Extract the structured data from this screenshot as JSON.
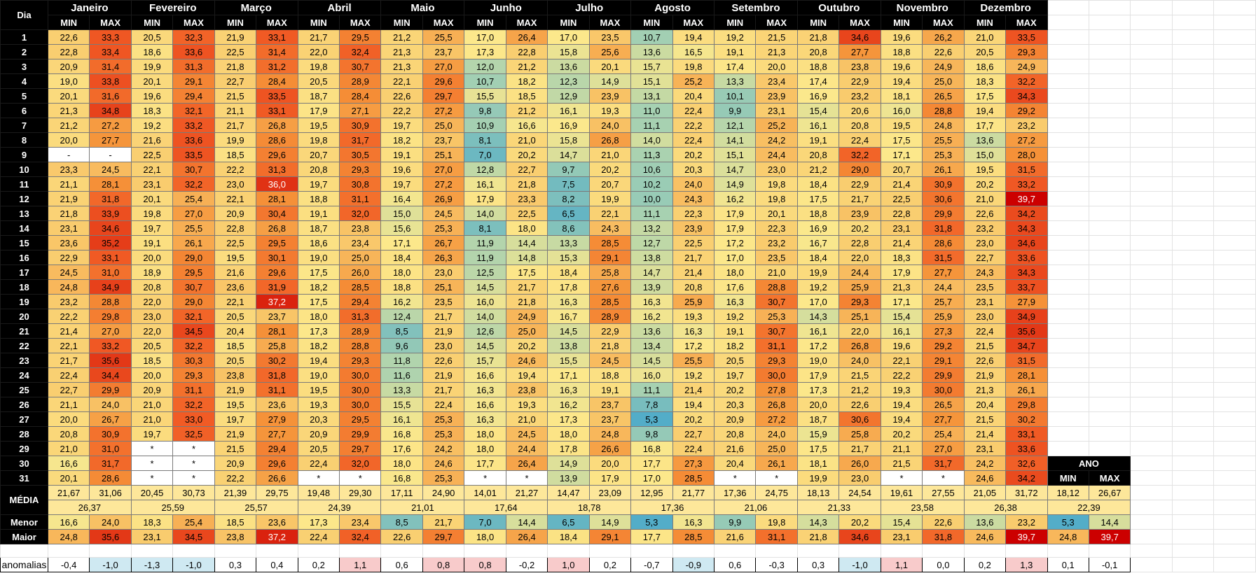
{
  "header": {
    "dia_label": "Dia",
    "min_label": "MIN",
    "max_label": "MAX",
    "months": [
      "Janeiro",
      "Fevereiro",
      "Março",
      "Abril",
      "Maio",
      "Junho",
      "Julho",
      "Agosto",
      "Setembro",
      "Outubro",
      "Novembro",
      "Dezembro"
    ]
  },
  "days": [
    "1",
    "2",
    "3",
    "4",
    "5",
    "6",
    "7",
    "8",
    "9",
    "10",
    "11",
    "12",
    "13",
    "14",
    "15",
    "16",
    "17",
    "18",
    "19",
    "20",
    "21",
    "22",
    "23",
    "24",
    "25",
    "26",
    "27",
    "28",
    "29",
    "30",
    "31"
  ],
  "rows": [
    [
      "22,6",
      "33,3",
      "20,5",
      "32,3",
      "21,9",
      "33,1",
      "21,7",
      "29,5",
      "21,2",
      "25,5",
      "17,0",
      "26,4",
      "17,0",
      "23,5",
      "10,7",
      "19,4",
      "19,2",
      "21,5",
      "21,8",
      "34,6",
      "19,6",
      "26,2",
      "21,0",
      "33,5"
    ],
    [
      "22,8",
      "33,4",
      "18,6",
      "33,6",
      "22,5",
      "31,4",
      "22,0",
      "32,4",
      "21,3",
      "23,7",
      "17,3",
      "22,8",
      "15,8",
      "25,6",
      "13,6",
      "16,5",
      "19,1",
      "21,3",
      "20,8",
      "27,7",
      "18,8",
      "22,6",
      "20,5",
      "29,3"
    ],
    [
      "20,9",
      "31,4",
      "19,9",
      "31,3",
      "21,8",
      "31,2",
      "19,8",
      "30,7",
      "21,3",
      "27,0",
      "12,0",
      "21,2",
      "13,6",
      "20,1",
      "15,7",
      "19,8",
      "17,4",
      "20,0",
      "18,8",
      "23,8",
      "19,6",
      "24,9",
      "18,6",
      "24,9"
    ],
    [
      "19,0",
      "33,8",
      "20,1",
      "29,1",
      "22,7",
      "28,4",
      "20,5",
      "28,9",
      "22,1",
      "29,6",
      "10,7",
      "18,2",
      "12,3",
      "14,9",
      "15,1",
      "25,2",
      "13,3",
      "23,4",
      "17,4",
      "22,9",
      "19,4",
      "25,0",
      "18,3",
      "32,2"
    ],
    [
      "20,1",
      "31,6",
      "19,6",
      "29,4",
      "21,5",
      "33,5",
      "18,7",
      "28,4",
      "22,6",
      "29,7",
      "15,5",
      "18,5",
      "12,9",
      "23,9",
      "13,1",
      "20,4",
      "10,1",
      "23,9",
      "16,9",
      "23,2",
      "18,1",
      "26,5",
      "17,5",
      "34,3"
    ],
    [
      "21,3",
      "34,8",
      "18,3",
      "32,1",
      "21,1",
      "33,1",
      "17,9",
      "27,1",
      "22,2",
      "27,2",
      "9,8",
      "21,2",
      "16,1",
      "19,3",
      "11,0",
      "22,4",
      "9,9",
      "23,1",
      "15,4",
      "20,6",
      "16,0",
      "28,8",
      "19,4",
      "29,2"
    ],
    [
      "21,2",
      "27,2",
      "19,2",
      "33,2",
      "21,7",
      "26,8",
      "19,5",
      "30,9",
      "19,7",
      "25,0",
      "10,9",
      "16,6",
      "16,9",
      "24,0",
      "11,1",
      "22,2",
      "12,1",
      "25,2",
      "16,1",
      "20,8",
      "19,5",
      "24,8",
      "17,7",
      "23,2"
    ],
    [
      "20,0",
      "27,7",
      "21,6",
      "33,6",
      "19,9",
      "28,6",
      "19,8",
      "31,7",
      "18,2",
      "23,7",
      "8,1",
      "21,0",
      "15,8",
      "26,8",
      "14,0",
      "22,4",
      "14,1",
      "24,2",
      "19,1",
      "22,4",
      "17,5",
      "25,5",
      "13,6",
      "27,2"
    ],
    [
      "-",
      "-",
      "22,5",
      "33,5",
      "18,5",
      "29,6",
      "20,7",
      "30,5",
      "19,1",
      "25,1",
      "7,0",
      "20,2",
      "14,7",
      "21,0",
      "11,3",
      "20,2",
      "15,1",
      "24,4",
      "20,8",
      "32,2",
      "17,1",
      "25,3",
      "15,0",
      "28,0"
    ],
    [
      "23,3",
      "24,5",
      "22,1",
      "30,7",
      "22,2",
      "31,3",
      "20,8",
      "29,3",
      "19,6",
      "27,0",
      "12,8",
      "22,7",
      "9,7",
      "20,2",
      "10,6",
      "20,3",
      "14,7",
      "23,0",
      "21,2",
      "29,0",
      "20,7",
      "26,1",
      "19,5",
      "31,5"
    ],
    [
      "21,1",
      "28,1",
      "23,1",
      "32,2",
      "23,0",
      "36,0",
      "19,7",
      "30,8",
      "19,7",
      "27,2",
      "16,1",
      "21,8",
      "7,5",
      "20,7",
      "10,2",
      "24,0",
      "14,9",
      "19,8",
      "18,4",
      "22,9",
      "21,4",
      "30,9",
      "20,2",
      "33,2"
    ],
    [
      "21,9",
      "31,8",
      "20,1",
      "25,4",
      "22,1",
      "28,1",
      "18,8",
      "31,1",
      "16,4",
      "26,9",
      "17,9",
      "23,3",
      "8,2",
      "19,9",
      "10,0",
      "24,3",
      "16,2",
      "19,8",
      "17,5",
      "21,7",
      "22,5",
      "30,6",
      "21,0",
      "39,7"
    ],
    [
      "21,8",
      "33,9",
      "19,8",
      "27,0",
      "20,9",
      "30,4",
      "19,1",
      "32,0",
      "15,0",
      "24,5",
      "14,0",
      "22,5",
      "6,5",
      "22,1",
      "11,1",
      "22,3",
      "17,9",
      "20,1",
      "18,8",
      "23,9",
      "22,8",
      "29,9",
      "22,6",
      "34,2"
    ],
    [
      "23,1",
      "34,6",
      "19,7",
      "25,5",
      "22,8",
      "26,8",
      "18,7",
      "23,8",
      "15,6",
      "25,3",
      "8,1",
      "18,0",
      "8,6",
      "24,3",
      "13,2",
      "23,9",
      "17,9",
      "22,3",
      "16,9",
      "20,2",
      "23,1",
      "31,8",
      "23,2",
      "34,3"
    ],
    [
      "23,6",
      "35,2",
      "19,1",
      "26,1",
      "22,5",
      "29,5",
      "18,6",
      "23,4",
      "17,1",
      "26,7",
      "11,9",
      "14,4",
      "13,3",
      "28,5",
      "12,7",
      "22,5",
      "17,2",
      "23,2",
      "16,7",
      "22,8",
      "21,4",
      "28,6",
      "23,0",
      "34,6"
    ],
    [
      "22,9",
      "33,1",
      "20,0",
      "29,0",
      "19,5",
      "30,1",
      "19,0",
      "25,0",
      "18,4",
      "26,3",
      "11,9",
      "14,8",
      "15,3",
      "29,1",
      "13,8",
      "21,7",
      "17,0",
      "23,5",
      "18,4",
      "22,0",
      "18,3",
      "31,5",
      "22,7",
      "33,6"
    ],
    [
      "24,5",
      "31,0",
      "18,9",
      "29,5",
      "21,6",
      "29,6",
      "17,5",
      "26,0",
      "18,0",
      "23,0",
      "12,5",
      "17,5",
      "18,4",
      "25,8",
      "14,7",
      "21,4",
      "18,0",
      "21,0",
      "19,9",
      "24,4",
      "17,9",
      "27,7",
      "24,3",
      "34,3"
    ],
    [
      "24,8",
      "34,9",
      "20,8",
      "30,7",
      "23,6",
      "31,9",
      "18,2",
      "28,5",
      "18,8",
      "25,1",
      "14,5",
      "21,7",
      "17,8",
      "27,6",
      "13,9",
      "20,8",
      "17,6",
      "28,8",
      "19,2",
      "25,9",
      "21,3",
      "24,4",
      "23,5",
      "33,7"
    ],
    [
      "23,2",
      "28,8",
      "22,0",
      "29,0",
      "22,1",
      "37,2",
      "17,5",
      "29,4",
      "16,2",
      "23,5",
      "16,0",
      "21,8",
      "16,3",
      "28,5",
      "16,3",
      "25,9",
      "16,3",
      "30,7",
      "17,0",
      "29,3",
      "17,1",
      "25,7",
      "23,1",
      "27,9"
    ],
    [
      "22,2",
      "29,8",
      "23,0",
      "32,1",
      "20,5",
      "23,7",
      "18,0",
      "31,3",
      "12,4",
      "21,7",
      "14,0",
      "24,9",
      "16,7",
      "28,9",
      "16,2",
      "19,3",
      "19,2",
      "25,3",
      "14,3",
      "25,1",
      "15,4",
      "25,9",
      "23,0",
      "34,9"
    ],
    [
      "21,4",
      "27,0",
      "22,0",
      "34,5",
      "20,4",
      "28,1",
      "17,3",
      "28,9",
      "8,5",
      "21,9",
      "12,6",
      "25,0",
      "14,5",
      "22,9",
      "13,6",
      "16,3",
      "19,1",
      "30,7",
      "16,1",
      "22,0",
      "16,1",
      "27,3",
      "22,4",
      "35,6"
    ],
    [
      "22,1",
      "33,2",
      "20,5",
      "32,2",
      "18,5",
      "25,8",
      "18,2",
      "28,8",
      "9,6",
      "23,0",
      "14,5",
      "20,2",
      "13,8",
      "21,8",
      "13,4",
      "17,2",
      "18,2",
      "31,1",
      "17,2",
      "26,8",
      "19,6",
      "29,2",
      "21,5",
      "34,7"
    ],
    [
      "21,7",
      "35,6",
      "18,5",
      "30,3",
      "20,5",
      "30,2",
      "19,4",
      "29,3",
      "11,8",
      "22,6",
      "15,7",
      "24,6",
      "15,5",
      "24,5",
      "14,5",
      "25,5",
      "20,5",
      "29,3",
      "19,0",
      "24,0",
      "22,1",
      "29,1",
      "22,6",
      "31,5"
    ],
    [
      "22,4",
      "34,4",
      "20,0",
      "29,3",
      "23,8",
      "31,8",
      "19,0",
      "30,0",
      "11,6",
      "21,9",
      "16,6",
      "19,4",
      "17,1",
      "18,8",
      "16,0",
      "19,2",
      "19,7",
      "30,0",
      "17,9",
      "21,5",
      "22,2",
      "29,9",
      "21,9",
      "28,1"
    ],
    [
      "22,7",
      "29,9",
      "20,9",
      "31,1",
      "21,9",
      "31,1",
      "19,5",
      "30,0",
      "13,3",
      "21,7",
      "16,3",
      "23,8",
      "16,3",
      "19,1",
      "11,1",
      "21,4",
      "20,2",
      "27,8",
      "17,3",
      "21,2",
      "19,3",
      "30,0",
      "21,3",
      "26,1"
    ],
    [
      "21,1",
      "24,0",
      "21,0",
      "32,2",
      "19,5",
      "23,6",
      "19,3",
      "30,0",
      "15,5",
      "22,4",
      "16,6",
      "19,3",
      "16,2",
      "23,7",
      "7,8",
      "19,4",
      "20,3",
      "26,8",
      "20,0",
      "22,6",
      "19,4",
      "26,5",
      "20,4",
      "29,8"
    ],
    [
      "20,0",
      "26,7",
      "21,0",
      "33,0",
      "19,7",
      "27,9",
      "20,3",
      "29,5",
      "16,1",
      "25,3",
      "16,3",
      "21,0",
      "17,3",
      "23,7",
      "5,3",
      "20,2",
      "20,9",
      "27,2",
      "18,7",
      "30,6",
      "19,4",
      "27,7",
      "21,5",
      "30,2"
    ],
    [
      "20,8",
      "30,9",
      "19,7",
      "32,5",
      "21,9",
      "27,7",
      "20,9",
      "29,9",
      "16,8",
      "25,3",
      "18,0",
      "24,5",
      "18,0",
      "24,8",
      "9,8",
      "22,7",
      "20,8",
      "24,0",
      "15,9",
      "25,8",
      "20,2",
      "25,4",
      "21,4",
      "33,1"
    ],
    [
      "21,0",
      "31,0",
      "*",
      "*",
      "21,5",
      "29,4",
      "20,5",
      "29,7",
      "17,6",
      "24,2",
      "18,0",
      "24,4",
      "17,8",
      "26,6",
      "16,8",
      "22,4",
      "21,6",
      "25,0",
      "17,5",
      "21,7",
      "21,1",
      "27,0",
      "23,1",
      "33,6"
    ],
    [
      "16,6",
      "31,7",
      "*",
      "*",
      "20,9",
      "29,6",
      "22,4",
      "32,0",
      "18,0",
      "24,6",
      "17,7",
      "26,4",
      "14,9",
      "20,0",
      "17,7",
      "27,3",
      "20,4",
      "26,1",
      "18,1",
      "26,0",
      "21,5",
      "31,7",
      "24,2",
      "32,6"
    ],
    [
      "20,1",
      "28,6",
      "*",
      "*",
      "22,2",
      "26,6",
      "*",
      "*",
      "16,8",
      "25,3",
      "*",
      "*",
      "13,9",
      "17,9",
      "17,0",
      "28,5",
      "*",
      "*",
      "19,9",
      "23,0",
      "*",
      "*",
      "24,6",
      "34,2"
    ]
  ],
  "summary": {
    "media_label": "MÉDIA",
    "media": [
      "21,67",
      "31,06",
      "20,45",
      "30,73",
      "21,39",
      "29,75",
      "19,48",
      "29,30",
      "17,11",
      "24,90",
      "14,01",
      "21,27",
      "14,47",
      "23,09",
      "12,95",
      "21,77",
      "17,36",
      "24,75",
      "18,13",
      "24,54",
      "19,61",
      "27,55",
      "21,05",
      "31,72"
    ],
    "media_month": [
      "26,37",
      "25,59",
      "25,57",
      "24,39",
      "21,01",
      "17,64",
      "18,78",
      "17,36",
      "21,06",
      "21,33",
      "23,58",
      "26,38"
    ],
    "menor_label": "Menor",
    "menor": [
      "16,6",
      "24,0",
      "18,3",
      "25,4",
      "18,5",
      "23,6",
      "17,3",
      "23,4",
      "8,5",
      "21,7",
      "7,0",
      "14,4",
      "6,5",
      "14,9",
      "5,3",
      "16,3",
      "9,9",
      "19,8",
      "14,3",
      "20,2",
      "15,4",
      "22,6",
      "13,6",
      "23,2"
    ],
    "maior_label": "Maior",
    "maior": [
      "24,8",
      "35,6",
      "23,1",
      "34,5",
      "23,8",
      "37,2",
      "22,4",
      "32,4",
      "22,6",
      "29,7",
      "18,0",
      "26,4",
      "18,4",
      "29,1",
      "17,7",
      "28,5",
      "21,6",
      "31,1",
      "21,8",
      "34,6",
      "23,1",
      "31,8",
      "24,6",
      "39,7"
    ]
  },
  "ano": {
    "label": "ANO",
    "min_label": "MIN",
    "max_label": "MAX",
    "media": [
      "18,12",
      "26,67"
    ],
    "media_total": "22,39",
    "menor": [
      "5,3",
      "14,4"
    ],
    "maior": [
      "24,8",
      "39,7"
    ]
  },
  "anomalias": {
    "label": "anomalias",
    "values": [
      "-0,4",
      "-1,0",
      "-1,3",
      "-1,0",
      "0,3",
      "0,4",
      "0,2",
      "1,1",
      "0,6",
      "0,8",
      "0,8",
      "-0,2",
      "1,0",
      "0,2",
      "-0,7",
      "-0,9",
      "0,6",
      "-0,3",
      "0,3",
      "-1,0",
      "1,1",
      "0,0",
      "0,2",
      "1,3",
      "0,1",
      "-0,1"
    ]
  }
}
